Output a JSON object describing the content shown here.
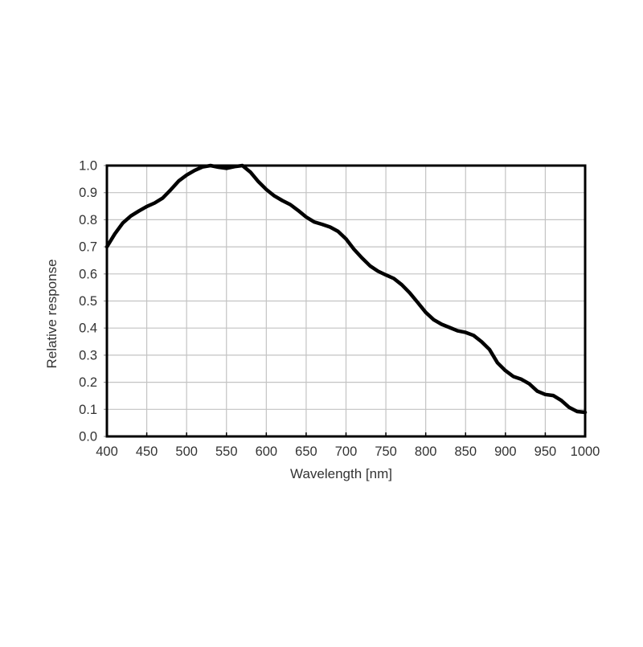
{
  "page": {
    "background": "#ffffff"
  },
  "chart_data": {
    "type": "line",
    "title": "",
    "xlabel": "Wavelength [nm]",
    "ylabel": "Relative response",
    "xlim": [
      400,
      1000
    ],
    "ylim": [
      0.0,
      1.0
    ],
    "x_tick_labels": [
      "400",
      "450",
      "500",
      "550",
      "600",
      "650",
      "700",
      "750",
      "800",
      "850",
      "900",
      "950",
      "1000"
    ],
    "x_ticks": [
      400,
      450,
      500,
      550,
      600,
      650,
      700,
      750,
      800,
      850,
      900,
      950,
      1000
    ],
    "y_tick_labels": [
      "0.0",
      "0.1",
      "0.2",
      "0.3",
      "0.4",
      "0.5",
      "0.6",
      "0.7",
      "0.8",
      "0.9",
      "1.0"
    ],
    "y_ticks": [
      0.0,
      0.1,
      0.2,
      0.3,
      0.4,
      0.5,
      0.6,
      0.7,
      0.8,
      0.9,
      1.0
    ],
    "grid": true,
    "legend": false,
    "colors": {
      "line": "#000000",
      "grid": "#c3c3c3",
      "axis": "#000000",
      "text": "#333333"
    },
    "series": [
      {
        "name": "relative-response",
        "x": [
          400,
          410,
          420,
          430,
          440,
          450,
          460,
          470,
          480,
          490,
          500,
          510,
          520,
          530,
          540,
          550,
          560,
          570,
          580,
          590,
          600,
          610,
          620,
          630,
          640,
          650,
          660,
          670,
          680,
          690,
          700,
          710,
          720,
          730,
          740,
          750,
          760,
          770,
          780,
          790,
          800,
          810,
          820,
          830,
          840,
          850,
          860,
          870,
          880,
          890,
          900,
          910,
          920,
          930,
          940,
          950,
          960,
          970,
          980,
          990,
          1000
        ],
        "y": [
          0.7,
          0.748,
          0.788,
          0.814,
          0.832,
          0.849,
          0.862,
          0.88,
          0.91,
          0.943,
          0.965,
          0.982,
          0.995,
          1.0,
          0.994,
          0.99,
          0.996,
          1.0,
          0.976,
          0.941,
          0.912,
          0.888,
          0.871,
          0.856,
          0.834,
          0.81,
          0.792,
          0.783,
          0.773,
          0.757,
          0.729,
          0.691,
          0.659,
          0.63,
          0.61,
          0.596,
          0.583,
          0.56,
          0.53,
          0.494,
          0.458,
          0.431,
          0.414,
          0.402,
          0.39,
          0.384,
          0.373,
          0.35,
          0.321,
          0.272,
          0.243,
          0.221,
          0.211,
          0.194,
          0.167,
          0.155,
          0.151,
          0.133,
          0.107,
          0.092,
          0.089
        ]
      }
    ]
  }
}
